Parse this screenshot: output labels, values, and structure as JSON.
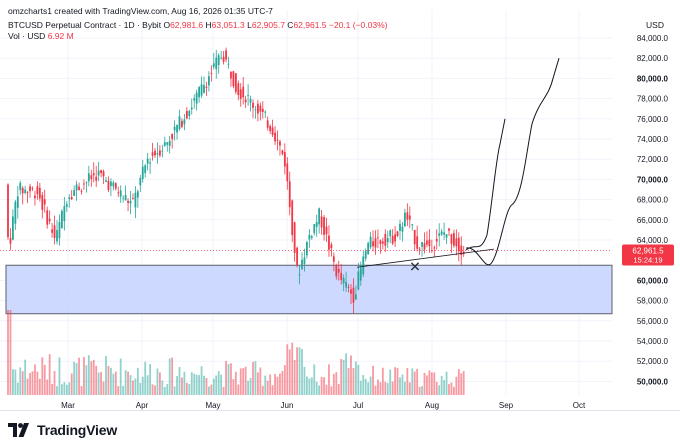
{
  "header": {
    "credit": "omzcharts1 created with TradingView.com, Aug 16, 2026 01:35 UTC-7",
    "symbol": "BTCUSD Perpetual Contract · 1D · Bybit",
    "ohlc": [
      {
        "key": "O",
        "value": "62,981.6"
      },
      {
        "key": "H",
        "value": "63,051.3"
      },
      {
        "key": "L",
        "value": "62,905.7"
      },
      {
        "key": "C",
        "value": "62,961.5"
      }
    ],
    "change": "−20.1 (−0.03%)",
    "volume_label": "Vol · USD",
    "volume_value": "6.92 M",
    "currency": "USD"
  },
  "colors": {
    "up": "#26a69a",
    "down": "#f23645",
    "zone_fill": "#c5d2ff",
    "zone_border": "#5d606b",
    "price_tag": "#f23645"
  },
  "price_axis": {
    "ticks": [
      "84,000.0",
      "82,000.0",
      "80,000.0",
      "78,000.0",
      "76,000.0",
      "74,000.0",
      "72,000.0",
      "70,000.0",
      "68,000.0",
      "66,000.0",
      "64,000.0",
      "60,000.0",
      "58,000.0",
      "56,000.0",
      "54,000.0",
      "52,000.0",
      "50,000.0"
    ],
    "bold_ticks": [
      "80,000.0",
      "70,000.0",
      "60,000.0",
      "50,000.0"
    ]
  },
  "price_tag": {
    "price": "62,961.5",
    "countdown": "15:24:19"
  },
  "time_axis": {
    "labels": [
      "Mar",
      "Apr",
      "May",
      "Jun",
      "Jul",
      "Aug",
      "Sep",
      "Oct"
    ]
  },
  "annotation": {
    "marker": "✕"
  },
  "footer": {
    "brand": "TradingView",
    "logo_icon": "tradingview-logo-icon"
  }
}
